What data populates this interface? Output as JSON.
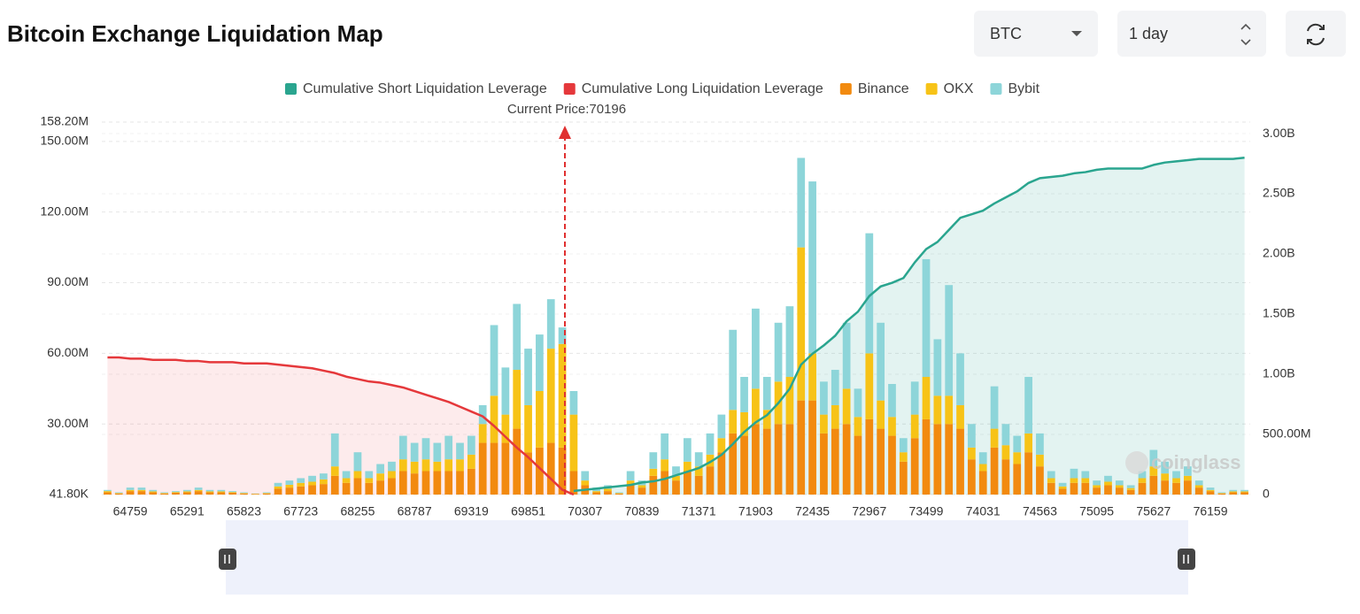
{
  "header": {
    "title": "Bitcoin Exchange Liquidation Map"
  },
  "controls": {
    "coin": "BTC",
    "range": "1 day"
  },
  "chart_data": {
    "type": "bar",
    "stacked": true,
    "annotation": "Current Price:70196",
    "watermark": "coinglass",
    "grid": true,
    "categories": [
      null,
      null,
      "64759",
      null,
      null,
      null,
      null,
      "65291",
      null,
      null,
      null,
      null,
      "65823",
      null,
      null,
      null,
      null,
      "67723",
      null,
      null,
      null,
      null,
      "68255",
      null,
      null,
      null,
      null,
      "68787",
      null,
      null,
      null,
      null,
      "69319",
      null,
      null,
      null,
      null,
      "69851",
      null,
      null,
      null,
      null,
      "70307",
      null,
      null,
      null,
      null,
      "70839",
      null,
      null,
      null,
      null,
      "71371",
      null,
      null,
      null,
      null,
      "71903",
      null,
      null,
      null,
      null,
      "72435",
      null,
      null,
      null,
      null,
      "72967",
      null,
      null,
      null,
      null,
      "73499",
      null,
      null,
      null,
      null,
      "74031",
      null,
      null,
      null,
      null,
      "74563",
      null,
      null,
      null,
      null,
      "75095",
      null,
      null,
      null,
      null,
      "75627",
      null,
      null,
      null,
      null,
      "76159",
      null,
      null,
      null
    ],
    "ylim": [
      41800,
      158200000
    ],
    "yticks": [
      {
        "value": 41800,
        "label": "41.80K"
      },
      {
        "value": 30000000,
        "label": "30.00M"
      },
      {
        "value": 60000000,
        "label": "60.00M"
      },
      {
        "value": 90000000,
        "label": "90.00M"
      },
      {
        "value": 120000000,
        "label": "120.00M"
      },
      {
        "value": 150000000,
        "label": "150.00M"
      },
      {
        "value": 158200000,
        "label": "158.20M"
      }
    ],
    "y2lim": [
      0,
      3096000000
    ],
    "y2ticks": [
      0,
      {
        "value": 500000000,
        "label": "500.00M"
      },
      {
        "value": 1000000000,
        "label": "1.00B"
      },
      {
        "value": 1500000000,
        "label": "1.50B"
      },
      {
        "value": 2000000000,
        "label": "2.00B"
      },
      {
        "value": 2500000000,
        "label": "2.50B"
      },
      {
        "value": 3000000000,
        "label": "3.00B"
      }
    ],
    "series": [
      {
        "name": "Cumulative Short Liquidation Leverage",
        "type": "line",
        "axis": "y2",
        "color": "#2aa58f",
        "fill": "rgba(42,165,143,0.13)",
        "values": [
          null,
          null,
          null,
          null,
          null,
          null,
          null,
          null,
          null,
          null,
          null,
          null,
          null,
          null,
          null,
          null,
          null,
          null,
          null,
          null,
          null,
          null,
          null,
          null,
          null,
          null,
          null,
          null,
          null,
          null,
          null,
          null,
          null,
          null,
          null,
          null,
          null,
          null,
          null,
          null,
          null,
          30000000.0,
          40000000.0,
          50000000.0,
          60000000.0,
          70000000.0,
          80000000.0,
          100000000.0,
          110000000.0,
          130000000.0,
          160000000.0,
          190000000.0,
          220000000.0,
          270000000.0,
          330000000.0,
          420000000.0,
          520000000.0,
          600000000.0,
          660000000.0,
          760000000.0,
          880000000.0,
          1080000000.0,
          1170000000.0,
          1240000000.0,
          1320000000.0,
          1440000000.0,
          1520000000.0,
          1650000000.0,
          1730000000.0,
          1760000000.0,
          1800000000.0,
          1930000000.0,
          2040000000.0,
          2100000000.0,
          2200000000.0,
          2300000000.0,
          2330000000.0,
          2360000000.0,
          2420000000.0,
          2470000000.0,
          2520000000.0,
          2590000000.0,
          2630000000.0,
          2640000000.0,
          2650000000.0,
          2670000000.0,
          2680000000.0,
          2700000000.0,
          2710000000.0,
          2710000000.0,
          2710000000.0,
          2710000000.0,
          2740000000.0,
          2760000000.0,
          2770000000.0,
          2780000000.0,
          2790000000.0,
          2790000000.0,
          2790000000.0,
          2790000000.0,
          2800000000.0
        ]
      },
      {
        "name": "Cumulative Long Liquidation Leverage",
        "type": "line",
        "axis": "y2",
        "color": "#e5383b",
        "fill": "rgba(240,90,100,0.12)",
        "values": [
          1140000000.0,
          1140000000.0,
          1130000000.0,
          1130000000.0,
          1120000000.0,
          1120000000.0,
          1120000000.0,
          1110000000.0,
          1110000000.0,
          1100000000.0,
          1100000000.0,
          1100000000.0,
          1090000000.0,
          1090000000.0,
          1090000000.0,
          1080000000.0,
          1070000000.0,
          1060000000.0,
          1050000000.0,
          1030000000.0,
          1010000000.0,
          980000000.0,
          960000000.0,
          940000000.0,
          930000000.0,
          910000000.0,
          890000000.0,
          860000000.0,
          830000000.0,
          800000000.0,
          770000000.0,
          730000000.0,
          690000000.0,
          650000000.0,
          570000000.0,
          480000000.0,
          390000000.0,
          310000000.0,
          220000000.0,
          130000000.0,
          40000000.0,
          0,
          null,
          null,
          null,
          null,
          null,
          null,
          null,
          null,
          null,
          null,
          null,
          null,
          null,
          null,
          null,
          null,
          null,
          null,
          null,
          null,
          null,
          null,
          null,
          null,
          null,
          null,
          null,
          null,
          null,
          null,
          null,
          null,
          null,
          null,
          null,
          null,
          null,
          null,
          null,
          null,
          null,
          null,
          null,
          null,
          null,
          null,
          null,
          null,
          null,
          null,
          null,
          null,
          null,
          null,
          null,
          null,
          null,
          null,
          null
        ]
      },
      {
        "name": "Binance",
        "color": "#f28a0f",
        "values": [
          1000000.0,
          500000.0,
          1500000.0,
          1500000.0,
          1000000.0,
          500000.0,
          800000.0,
          1000000.0,
          1500000.0,
          1000000.0,
          1000000.0,
          800000.0,
          500000.0,
          300000.0,
          500000.0,
          2500000.0,
          3000000.0,
          3500000.0,
          4000000.0,
          4500000.0,
          8000000.0,
          5000000.0,
          7000000.0,
          5000000.0,
          6000000.0,
          7000000.0,
          10000000.0,
          9000000.0,
          10000000.0,
          10000000.0,
          10000000.0,
          10000000.0,
          11000000.0,
          22000000.0,
          22000000.0,
          22000000.0,
          28000000.0,
          18000000.0,
          20000000.0,
          22000000.0,
          20000000.0,
          10000000.0,
          4000000.0,
          1000000.0,
          1500000.0,
          500000.0,
          4000000.0,
          3000000.0,
          8000000.0,
          10000000.0,
          6000000.0,
          10000000.0,
          8000000.0,
          12000000.0,
          18000000.0,
          26000000.0,
          25000000.0,
          30000000.0,
          28000000.0,
          30000000.0,
          30000000.0,
          40000000.0,
          40000000.0,
          26000000.0,
          28000000.0,
          30000000.0,
          25000000.0,
          32000000.0,
          28000000.0,
          25000000.0,
          14000000.0,
          24000000.0,
          32000000.0,
          30000000.0,
          30000000.0,
          28000000.0,
          15000000.0,
          10000000.0,
          20000000.0,
          15000000.0,
          13000000.0,
          18000000.0,
          12000000.0,
          5000000.0,
          2500000.0,
          5000000.0,
          5000000.0,
          3000000.0,
          4000000.0,
          3000000.0,
          2000000.0,
          5000000.0,
          8000000.0,
          6000000.0,
          5000000.0,
          6000000.0,
          3000000.0,
          1500000.0,
          500000.0,
          1000000.0,
          1000000.0
        ]
      },
      {
        "name": "OKX",
        "color": "#f7c317",
        "values": [
          500000.0,
          200000.0,
          500000.0,
          500000.0,
          400000.0,
          200000.0,
          300000.0,
          400000.0,
          500000.0,
          400000.0,
          400000.0,
          300000.0,
          200000.0,
          100000.0,
          200000.0,
          1000000.0,
          1200000.0,
          1500000.0,
          1500000.0,
          2000000.0,
          4000000.0,
          2000000.0,
          3000000.0,
          2000000.0,
          3000000.0,
          3000000.0,
          5000000.0,
          5000000.0,
          5000000.0,
          4000000.0,
          5000000.0,
          5000000.0,
          6000000.0,
          8000000.0,
          20000000.0,
          12000000.0,
          25000000.0,
          20000000.0,
          24000000.0,
          40000000.0,
          44000000.0,
          24000000.0,
          2000000.0,
          500000.0,
          1000000.0,
          200000.0,
          2000000.0,
          1000000.0,
          3000000.0,
          5000000.0,
          2000000.0,
          4000000.0,
          4000000.0,
          5000000.0,
          6000000.0,
          10000000.0,
          10000000.0,
          15000000.0,
          8000000.0,
          18000000.0,
          20000000.0,
          65000000.0,
          20000000.0,
          8000000.0,
          10000000.0,
          15000000.0,
          8000000.0,
          28000000.0,
          12000000.0,
          8000000.0,
          4000000.0,
          10000000.0,
          18000000.0,
          12000000.0,
          12000000.0,
          10000000.0,
          5000000.0,
          3000000.0,
          8000000.0,
          6000000.0,
          5000000.0,
          8000000.0,
          5000000.0,
          2000000.0,
          1000000.0,
          2000000.0,
          2000000.0,
          1000000.0,
          1500000.0,
          1000000.0,
          800000.0,
          2000000.0,
          4000000.0,
          3000000.0,
          2000000.0,
          2000000.0,
          1000000.0,
          500000.0,
          200000.0,
          400000.0,
          400000.0
        ]
      },
      {
        "name": "Bybit",
        "color": "#8dd5d9",
        "values": [
          500000.0,
          300000.0,
          1000000.0,
          1000000.0,
          600000.0,
          300000.0,
          400000.0,
          600000.0,
          1000000.0,
          600000.0,
          600000.0,
          400000.0,
          300000.0,
          100000.0,
          300000.0,
          1500000.0,
          1800000.0,
          2000000.0,
          2500000.0,
          2500000.0,
          14000000.0,
          3000000.0,
          8000000.0,
          3000000.0,
          4000000.0,
          4000000.0,
          10000000.0,
          8000000.0,
          9000000.0,
          8000000.0,
          10000000.0,
          7000000.0,
          8000000.0,
          8000000.0,
          30000000.0,
          20000000.0,
          28000000.0,
          24000000.0,
          24000000.0,
          21000000.0,
          7000000.0,
          10000000.0,
          4000000.0,
          1500000.0,
          1500000.0,
          300000.0,
          4000000.0,
          2000000.0,
          7000000.0,
          11000000.0,
          4000000.0,
          10000000.0,
          6000000.0,
          9000000.0,
          10000000.0,
          34000000.0,
          15000000.0,
          34000000.0,
          14000000.0,
          25000000.0,
          30000000.0,
          38000000.0,
          73000000.0,
          14000000.0,
          15000000.0,
          28000000.0,
          12000000.0,
          51000000.0,
          33000000.0,
          14000000.0,
          6000000.0,
          14000000.0,
          50000000.0,
          24000000.0,
          47000000.0,
          22000000.0,
          10000000.0,
          5000000.0,
          18000000.0,
          9000000.0,
          7000000.0,
          24000000.0,
          9000000.0,
          3000000.0,
          1500000.0,
          4000000.0,
          3000000.0,
          2000000.0,
          2500000.0,
          2000000.0,
          1200000.0,
          3000000.0,
          7000000.0,
          5000000.0,
          3000000.0,
          4000000.0,
          2000000.0,
          1000000.0,
          300000.0,
          600000.0,
          600000.0
        ]
      }
    ]
  }
}
